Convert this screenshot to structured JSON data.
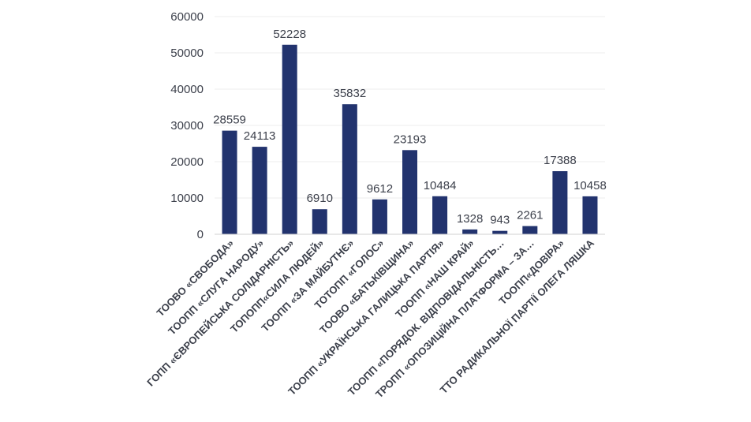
{
  "chart_data": {
    "type": "bar",
    "title": "",
    "xlabel": "",
    "ylabel": "",
    "ylim": [
      0,
      60000
    ],
    "yticks": [
      0,
      10000,
      20000,
      30000,
      40000,
      50000,
      60000
    ],
    "grid": true,
    "legend": "none",
    "bar_color": "#22336e",
    "categories": [
      "ТООВО «СВОБОДА»",
      "ТООПП «СЛУГА НАРОДУ»",
      "ГОПП «ЄВРОПЕЙСЬКА СОЛІДАРНІСТЬ»",
      "ТОПОПП«СИЛА ЛЮДЕЙ»",
      "ТООПП «ЗА МАЙБУТНЄ»",
      "ТОТОПП «ГОЛОС»",
      "ТООВО «БАТЬКІВЩИНА»",
      "ТООПП «УКРАЇНСЬКА ГАЛИЦЬКА ПАРТІЯ»",
      "ТООПП «НАШ КРАЙ»",
      "ТООПП «ПОРЯДОК. ВІДПОВІДАЛЬНІСТЬ…",
      "ТРОПП «ОПОЗИЦІЙНА ПЛАТФОРМА – ЗА…",
      "ТООПП«ДОВІРА»",
      "ТТО РАДИКАЛЬНОЇ ПАРТІЇ ОЛЕГА ЛЯШКА"
    ],
    "values": [
      28559,
      24113,
      52228,
      6910,
      35832,
      9612,
      23193,
      10484,
      1328,
      943,
      2261,
      17388,
      10458
    ],
    "value_labels": [
      "28559",
      "24113",
      "52228",
      "6910",
      "35832",
      "9612",
      "23193",
      "10484",
      "1328",
      "943",
      "2261",
      "17388",
      "10458"
    ],
    "ytick_labels": [
      "0",
      "10000",
      "20000",
      "30000",
      "40000",
      "50000",
      "60000"
    ]
  }
}
